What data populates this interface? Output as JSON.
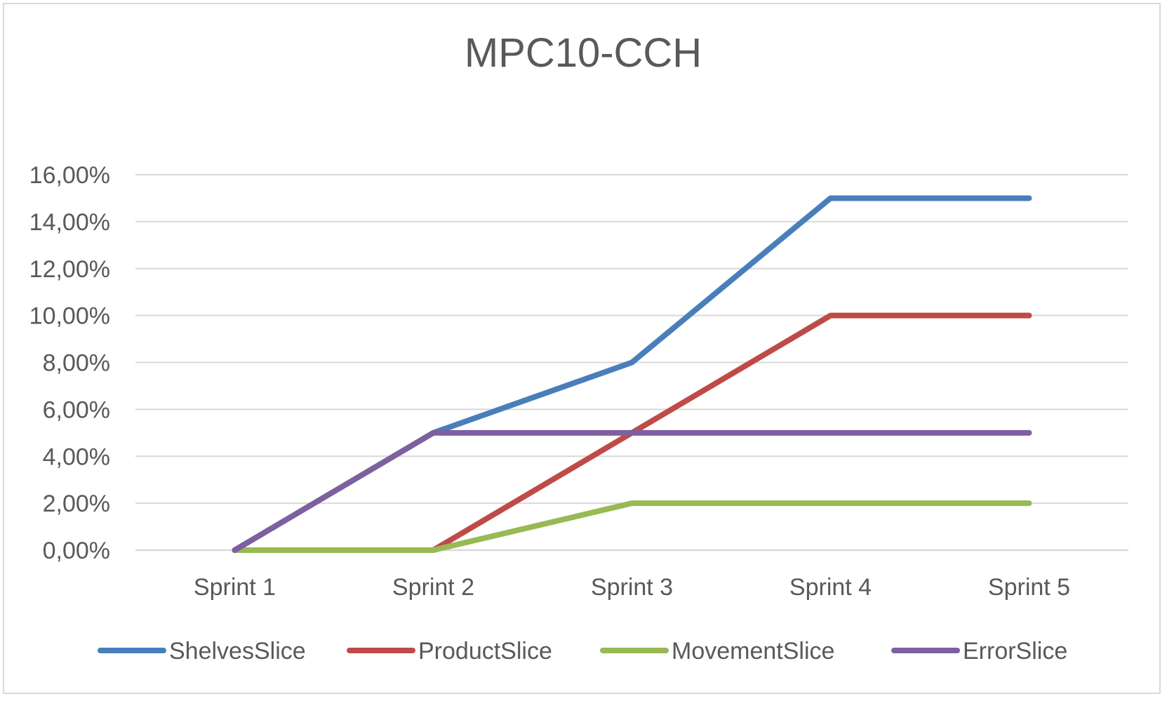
{
  "chart_data": {
    "type": "line",
    "title": "MPC10-CCH",
    "xlabel": "",
    "ylabel": "",
    "categories": [
      "Sprint 1",
      "Sprint 2",
      "Sprint 3",
      "Sprint 4",
      "Sprint 5"
    ],
    "y_ticks": [
      "0,00%",
      "2,00%",
      "4,00%",
      "6,00%",
      "8,00%",
      "10,00%",
      "12,00%",
      "14,00%",
      "16,00%"
    ],
    "ylim": [
      0,
      16
    ],
    "y_unit": "%",
    "grid": true,
    "legend_position": "bottom",
    "series": [
      {
        "name": "ShelvesSlice",
        "color": "#4a7ebb",
        "values": [
          0,
          5,
          8,
          15,
          15
        ]
      },
      {
        "name": "ProductSlice",
        "color": "#be4b48",
        "values": [
          0,
          0,
          5,
          10,
          10
        ]
      },
      {
        "name": "MovementSlice",
        "color": "#98b954",
        "values": [
          0,
          0,
          2,
          2,
          2
        ]
      },
      {
        "name": "ErrorSlice",
        "color": "#7d60a0",
        "values": [
          0,
          5,
          5,
          5,
          5
        ]
      }
    ]
  }
}
